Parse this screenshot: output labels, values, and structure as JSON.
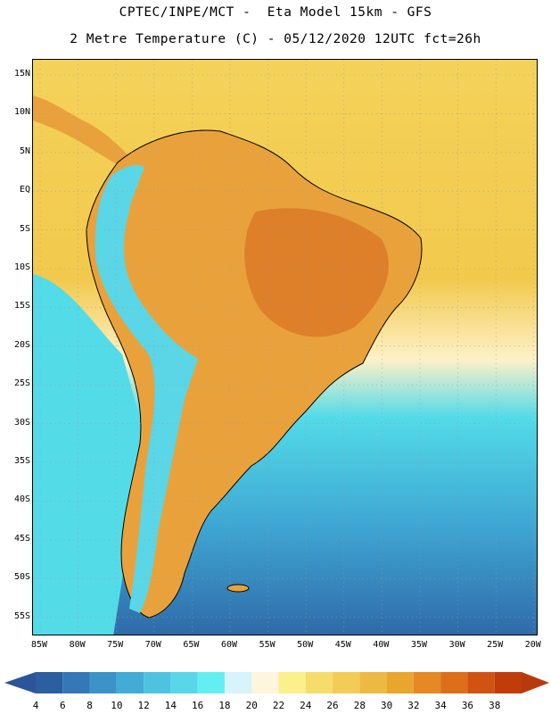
{
  "header": {
    "line1": "CPTEC/INPE/MCT -  Eta Model 15km - GFS",
    "line2": "2 Metre Temperature (C) - 05/12/2020 12UTC fct=26h"
  },
  "map": {
    "region": "South America",
    "lat_ticks": [
      "15N",
      "10N",
      "5N",
      "EQ",
      "5S",
      "10S",
      "15S",
      "20S",
      "25S",
      "30S",
      "35S",
      "40S",
      "45S",
      "50S",
      "55S"
    ],
    "lon_ticks": [
      "85W",
      "80W",
      "75W",
      "70W",
      "65W",
      "60W",
      "55W",
      "50W",
      "45W",
      "40W",
      "35W",
      "30W",
      "25W",
      "20W"
    ],
    "colors": {
      "ocean_warm": "#f4d25a",
      "ocean_tropical": "#f2c94c",
      "land_hot": "#e9a23b",
      "land_very_hot": "#de7f2a",
      "andes": "#5ad6e6",
      "ocean_cool": "#53dbe8",
      "ocean_cold": "#3fa9d4",
      "ocean_coldest": "#2f6aa8",
      "coast": "#000000"
    }
  },
  "colorbar": {
    "labels": [
      "4",
      "6",
      "8",
      "10",
      "12",
      "14",
      "16",
      "18",
      "20",
      "22",
      "24",
      "26",
      "28",
      "30",
      "32",
      "34",
      "36",
      "38"
    ],
    "colors": [
      "#2c5fa0",
      "#3478b8",
      "#3b93c8",
      "#42abd6",
      "#4ec3e0",
      "#58d7e8",
      "#63eef2",
      "#d7f3fb",
      "#fdf5dc",
      "#fbf08c",
      "#f6dc6a",
      "#f2cc56",
      "#ecb943",
      "#e8a62f",
      "#e48924",
      "#dd6f1a",
      "#d05312",
      "#c03c0b"
    ],
    "low_arrow_color": "#2a559a",
    "high_arrow_color": "#b83a0c"
  }
}
